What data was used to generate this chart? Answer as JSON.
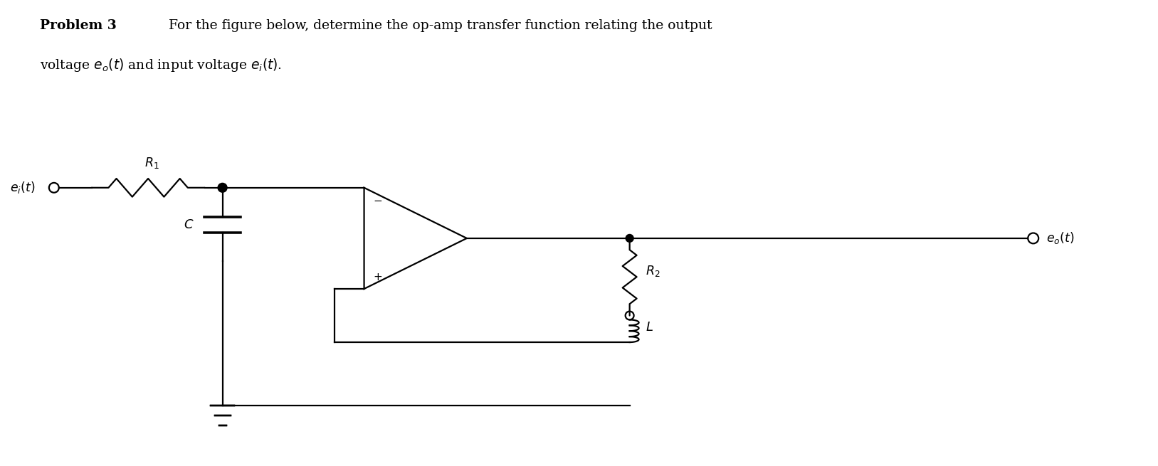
{
  "bg_color": "#ffffff",
  "fig_width": 16.27,
  "fig_height": 6.55,
  "text_color": "#000000",
  "lw": 1.6
}
